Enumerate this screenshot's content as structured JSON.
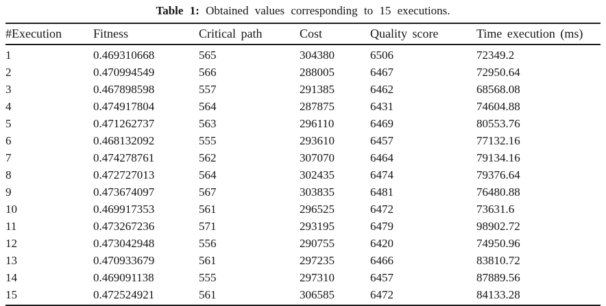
{
  "caption": {
    "label": "Table 1:",
    "text": "Obtained values corresponding to 15 executions."
  },
  "table": {
    "headers": [
      "#Execution",
      "Fitness",
      "Critical path",
      "Cost",
      "Quality score",
      "Time execution (ms)"
    ],
    "rows": [
      [
        "1",
        "0.469310668",
        "565",
        "304380",
        "6506",
        "72349.2"
      ],
      [
        "2",
        "0.470994549",
        "566",
        "288005",
        "6467",
        "72950.64"
      ],
      [
        "3",
        "0.467898598",
        "557",
        "291385",
        "6462",
        "68568.08"
      ],
      [
        "4",
        "0.474917804",
        "564",
        "287875",
        "6431",
        "74604.88"
      ],
      [
        "5",
        "0.471262737",
        "563",
        "296110",
        "6469",
        "80553.76"
      ],
      [
        "6",
        "0.468132092",
        "555",
        "293610",
        "6457",
        "77132.16"
      ],
      [
        "7",
        "0.474278761",
        "562",
        "307070",
        "6464",
        "79134.16"
      ],
      [
        "8",
        "0.472727013",
        "564",
        "302435",
        "6474",
        "79376.64"
      ],
      [
        "9",
        "0.473674097",
        "567",
        "303835",
        "6481",
        "76480.88"
      ],
      [
        "10",
        "0.469917353",
        "561",
        "296525",
        "6472",
        "73631.6"
      ],
      [
        "11",
        "0.473267236",
        "571",
        "293195",
        "6479",
        "98902.72"
      ],
      [
        "12",
        "0.473042948",
        "556",
        "290755",
        "6420",
        "74950.96"
      ],
      [
        "13",
        "0.470933679",
        "561",
        "297235",
        "6466",
        "83810.72"
      ],
      [
        "14",
        "0.469091138",
        "555",
        "297310",
        "6457",
        "87889.56"
      ],
      [
        "15",
        "0.472524921",
        "561",
        "306585",
        "6472",
        "84133.28"
      ]
    ]
  }
}
